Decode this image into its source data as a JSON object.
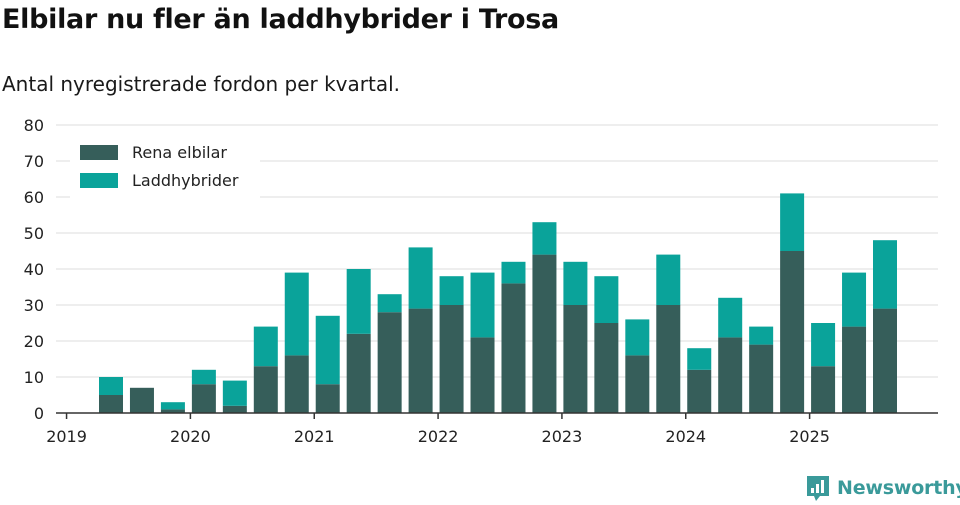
{
  "header": {
    "title": "Elbilar nu fler än laddhybrider i Trosa",
    "subtitle": "Antal nyregistrerade fordon per kvartal."
  },
  "brand": {
    "name": "Newsworthy",
    "icon": "newsworthy-logo-icon"
  },
  "colors": {
    "elbilar": "#365e5a",
    "laddhybrider": "#0aa39a",
    "grid": "#dddddd",
    "axis": "#333333"
  },
  "chart_data": {
    "type": "bar",
    "stacked": true,
    "title": "Elbilar nu fler än laddhybrider i Trosa",
    "subtitle": "Antal nyregistrerade fordon per kvartal.",
    "xlabel": "",
    "ylabel": "",
    "ylim": [
      0,
      80
    ],
    "yticks": [
      0,
      10,
      20,
      30,
      40,
      50,
      60,
      70,
      80
    ],
    "xticks": [
      "2019",
      "2020",
      "2021",
      "2022",
      "2023",
      "2024",
      "2025"
    ],
    "categories": [
      "2019 Q2",
      "2019 Q3",
      "2019 Q4",
      "2020 Q1",
      "2020 Q2",
      "2020 Q3",
      "2020 Q4",
      "2021 Q1",
      "2021 Q2",
      "2021 Q3",
      "2021 Q4",
      "2022 Q1",
      "2022 Q2",
      "2022 Q3",
      "2022 Q4",
      "2023 Q1",
      "2023 Q2",
      "2023 Q3",
      "2023 Q4",
      "2024 Q1",
      "2024 Q2",
      "2024 Q3",
      "2024 Q4",
      "2025 Q1",
      "2025 Q2",
      "2025 Q3"
    ],
    "series": [
      {
        "name": "Rena elbilar",
        "values": [
          5,
          7,
          1,
          8,
          2,
          13,
          16,
          8,
          22,
          28,
          29,
          30,
          21,
          36,
          44,
          30,
          25,
          16,
          30,
          12,
          21,
          19,
          45,
          13,
          24,
          29
        ]
      },
      {
        "name": "Laddhybrider",
        "values": [
          5,
          0,
          2,
          4,
          7,
          11,
          23,
          19,
          18,
          5,
          17,
          8,
          18,
          6,
          9,
          12,
          13,
          10,
          14,
          6,
          11,
          5,
          16,
          12,
          15,
          19
        ]
      }
    ],
    "legend": {
      "position": "top-left",
      "entries": [
        "Rena elbilar",
        "Laddhybrider"
      ]
    }
  }
}
